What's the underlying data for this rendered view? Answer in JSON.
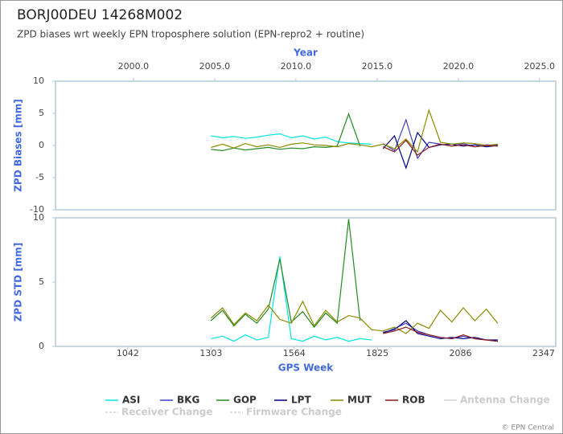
{
  "title": "BORJ00DEU 14268M002",
  "subtitle": "ZPD biases wrt weekly EPN troposphere solution (EPN-repro2 + routine)",
  "legend_extra": [
    "Antenna Change",
    "Receiver Change",
    "Firmware Change"
  ],
  "footer": "© EPN Central",
  "chart_data": [
    {
      "type": "line",
      "ylabel": "ZPD Biases [mm]",
      "top_axis": {
        "label": "Year",
        "xlim": [
          1995.2,
          2026.0
        ],
        "xticks": [
          {
            "value": 2000,
            "label": "2000.0"
          },
          {
            "value": 2005,
            "label": "2005.0"
          },
          {
            "value": 2010,
            "label": "2010.0"
          },
          {
            "value": 2015,
            "label": "2015.0"
          },
          {
            "value": 2020,
            "label": "2020.0"
          },
          {
            "value": 2025,
            "label": "2025.0"
          }
        ]
      },
      "xlim": [
        815,
        2385
      ],
      "ylim": [
        -10,
        10
      ],
      "yticks": [
        -10,
        -5,
        0,
        5,
        10
      ],
      "x": [
        1303,
        1339,
        1375,
        1411,
        1447,
        1483,
        1519,
        1555,
        1591,
        1627,
        1663,
        1699,
        1735,
        1771,
        1807,
        1843,
        1879,
        1915,
        1951,
        1987,
        2023,
        2059,
        2095,
        2131,
        2167,
        2203
      ],
      "series": [
        {
          "name": "ASI",
          "color": "#00e5e5",
          "values": [
            1.5,
            1.2,
            1.4,
            1.1,
            1.3,
            1.6,
            1.8,
            1.2,
            1.5,
            1.0,
            1.3,
            0.6,
            0.4,
            0.3,
            0.2,
            null,
            null,
            null,
            null,
            null,
            null,
            null,
            null,
            null,
            null,
            null
          ]
        },
        {
          "name": "BKG",
          "color": "#4040c0",
          "values": [
            null,
            null,
            null,
            null,
            null,
            null,
            null,
            null,
            null,
            null,
            null,
            null,
            null,
            null,
            null,
            0.3,
            -0.8,
            4.0,
            -2.0,
            0.5,
            0.2,
            -0.1,
            0.3,
            -0.2,
            0.1,
            0.0
          ]
        },
        {
          "name": "GOP",
          "color": "#228b22",
          "values": [
            -0.6,
            -0.8,
            -0.4,
            -0.7,
            -0.5,
            -0.3,
            -0.6,
            -0.4,
            -0.5,
            -0.2,
            -0.3,
            -0.1,
            4.9,
            -0.1,
            null,
            null,
            null,
            null,
            null,
            null,
            null,
            null,
            null,
            null,
            null,
            null
          ]
        },
        {
          "name": "LPT",
          "color": "#00008b",
          "values": [
            null,
            null,
            null,
            null,
            null,
            null,
            null,
            null,
            null,
            null,
            null,
            null,
            null,
            null,
            null,
            -0.5,
            1.5,
            -3.5,
            2.0,
            -0.3,
            0.1,
            0.2,
            -0.1,
            0.1,
            -0.2,
            0.0
          ]
        },
        {
          "name": "MUT",
          "color": "#8b8b00",
          "values": [
            -0.3,
            0.2,
            -0.4,
            0.3,
            -0.2,
            0.1,
            -0.3,
            0.2,
            0.4,
            0.1,
            0.0,
            -0.2,
            0.3,
            0.1,
            -0.2,
            0.2,
            -0.5,
            1.0,
            -1.0,
            5.5,
            0.5,
            0.2,
            0.4,
            0.3,
            0.0,
            0.2
          ]
        },
        {
          "name": "ROB",
          "color": "#8b1a1a",
          "values": [
            null,
            null,
            null,
            null,
            null,
            null,
            null,
            null,
            null,
            null,
            null,
            null,
            null,
            null,
            null,
            -0.2,
            -1.0,
            0.8,
            -1.5,
            -0.3,
            0.2,
            -0.1,
            0.1,
            -0.2,
            0.0,
            -0.1
          ]
        }
      ]
    },
    {
      "type": "line",
      "ylabel": "ZPD STD [mm]",
      "xlabel": "GPS Week",
      "xlim": [
        815,
        2385
      ],
      "ylim": [
        0,
        10
      ],
      "yticks": [
        0,
        5,
        10
      ],
      "xticks": [
        1042,
        1303,
        1564,
        1825,
        2086,
        2347
      ],
      "x": [
        1303,
        1339,
        1375,
        1411,
        1447,
        1483,
        1519,
        1555,
        1591,
        1627,
        1663,
        1699,
        1735,
        1771,
        1807,
        1843,
        1879,
        1915,
        1951,
        1987,
        2023,
        2059,
        2095,
        2131,
        2167,
        2203
      ],
      "series": [
        {
          "values": [
            0.6,
            0.8,
            0.4,
            0.9,
            0.5,
            0.7,
            7.0,
            0.6,
            0.4,
            0.8,
            0.5,
            0.7,
            0.4,
            0.6,
            0.5,
            null,
            null,
            null,
            null,
            null,
            null,
            null,
            null,
            null,
            null,
            null
          ]
        },
        {
          "values": [
            null,
            null,
            null,
            null,
            null,
            null,
            null,
            null,
            null,
            null,
            null,
            null,
            null,
            null,
            null,
            1.0,
            1.4,
            1.8,
            1.2,
            0.9,
            0.7,
            0.6,
            0.8,
            0.6,
            0.5,
            0.4
          ]
        },
        {
          "values": [
            2.0,
            2.8,
            1.6,
            2.5,
            1.8,
            2.9,
            6.8,
            1.9,
            2.7,
            1.5,
            2.6,
            1.8,
            9.9,
            2.0,
            null,
            null,
            null,
            null,
            null,
            null,
            null,
            null,
            null,
            null,
            null,
            null
          ]
        },
        {
          "values": [
            null,
            null,
            null,
            null,
            null,
            null,
            null,
            null,
            null,
            null,
            null,
            null,
            null,
            null,
            null,
            1.1,
            1.3,
            2.0,
            1.0,
            0.8,
            0.6,
            0.7,
            0.6,
            0.7,
            0.5,
            0.5
          ]
        },
        {
          "values": [
            2.2,
            3.0,
            1.7,
            2.6,
            2.0,
            3.2,
            2.1,
            1.8,
            3.5,
            1.6,
            2.8,
            1.9,
            2.4,
            2.2,
            1.3,
            1.2,
            1.5,
            1.0,
            1.8,
            1.4,
            2.8,
            1.9,
            3.0,
            2.0,
            2.9,
            1.8
          ]
        },
        {
          "values": [
            null,
            null,
            null,
            null,
            null,
            null,
            null,
            null,
            null,
            null,
            null,
            null,
            null,
            null,
            null,
            1.0,
            1.2,
            1.5,
            1.1,
            0.9,
            0.7,
            0.6,
            0.9,
            0.6,
            0.5,
            0.4
          ]
        }
      ]
    }
  ]
}
